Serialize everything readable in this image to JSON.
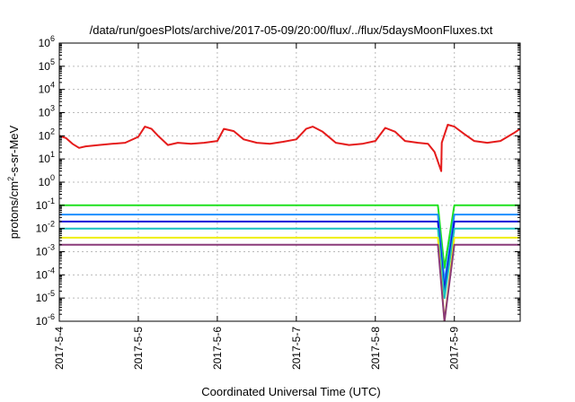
{
  "chart_data": {
    "type": "line",
    "title": "/data/run/goesPlots/archive/2017-05-09/20:00/flux/../flux/5daysMoonFluxes.txt",
    "xlabel": "Coordinated Universal Time (UTC)",
    "ylabel": {
      "prefix": "protons/cm",
      "superscript": "2",
      "suffix": "-s-sr-MeV"
    },
    "y_scale": "log",
    "ylim": [
      1e-06,
      1000000.0
    ],
    "xlim": [
      "2017-05-04T00:00",
      "2017-05-09T20:00"
    ],
    "grid": true,
    "legend": "none",
    "x_ticks": [
      {
        "label": "2017-5-4",
        "value": "2017-05-04T00:00"
      },
      {
        "label": "2017-5-5",
        "value": "2017-05-05T00:00"
      },
      {
        "label": "2017-5-6",
        "value": "2017-05-06T00:00"
      },
      {
        "label": "2017-5-7",
        "value": "2017-05-07T00:00"
      },
      {
        "label": "2017-5-8",
        "value": "2017-05-08T00:00"
      },
      {
        "label": "2017-5-9",
        "value": "2017-05-09T00:00"
      }
    ],
    "y_ticks": [
      {
        "base": "10",
        "exp": "-6",
        "value": 1e-06
      },
      {
        "base": "10",
        "exp": "-5",
        "value": 1e-05
      },
      {
        "base": "10",
        "exp": "-4",
        "value": 0.0001
      },
      {
        "base": "10",
        "exp": "-3",
        "value": 0.001
      },
      {
        "base": "10",
        "exp": "-2",
        "value": 0.01
      },
      {
        "base": "10",
        "exp": "-1",
        "value": 0.1
      },
      {
        "base": "10",
        "exp": "0",
        "value": 1
      },
      {
        "base": "10",
        "exp": "1",
        "value": 10
      },
      {
        "base": "10",
        "exp": "2",
        "value": 100
      },
      {
        "base": "10",
        "exp": "3",
        "value": 1000
      },
      {
        "base": "10",
        "exp": "4",
        "value": 10000
      },
      {
        "base": "10",
        "exp": "5",
        "value": 100000
      },
      {
        "base": "10",
        "exp": "6",
        "value": 1000000
      }
    ],
    "series": [
      {
        "color": "#e51b1b",
        "x": [
          "2017-05-04T00:00",
          "2017-05-04T02:00",
          "2017-05-04T04:00",
          "2017-05-04T06:00",
          "2017-05-04T08:00",
          "2017-05-04T12:00",
          "2017-05-04T16:00",
          "2017-05-04T20:00",
          "2017-05-05T00:00",
          "2017-05-05T02:00",
          "2017-05-05T04:00",
          "2017-05-05T06:00",
          "2017-05-05T09:00",
          "2017-05-05T12:00",
          "2017-05-05T16:00",
          "2017-05-05T20:00",
          "2017-05-06T00:00",
          "2017-05-06T02:00",
          "2017-05-06T05:00",
          "2017-05-06T08:00",
          "2017-05-06T12:00",
          "2017-05-06T16:00",
          "2017-05-06T20:00",
          "2017-05-07T00:00",
          "2017-05-07T03:00",
          "2017-05-07T05:00",
          "2017-05-07T08:00",
          "2017-05-07T12:00",
          "2017-05-07T16:00",
          "2017-05-07T20:00",
          "2017-05-08T00:00",
          "2017-05-08T03:00",
          "2017-05-08T06:00",
          "2017-05-08T09:00",
          "2017-05-08T13:00",
          "2017-05-08T16:00",
          "2017-05-08T18:00",
          "2017-05-08T20:00",
          "2017-05-08T20:10",
          "2017-05-08T22:00",
          "2017-05-09T00:00",
          "2017-05-09T03:00",
          "2017-05-09T06:00",
          "2017-05-09T10:00",
          "2017-05-09T14:00",
          "2017-05-09T18:00",
          "2017-05-09T20:00"
        ],
        "y": [
          100,
          80,
          45,
          30,
          35,
          40,
          45,
          50,
          90,
          250,
          200,
          100,
          40,
          50,
          45,
          50,
          60,
          200,
          160,
          70,
          50,
          45,
          55,
          70,
          200,
          250,
          150,
          50,
          40,
          45,
          60,
          220,
          150,
          60,
          50,
          45,
          20,
          3,
          50,
          300,
          250,
          120,
          60,
          50,
          60,
          130,
          200
        ]
      },
      {
        "color": "#1fe01f",
        "x": [
          "2017-05-04T00:00",
          "2017-05-04T12:00",
          "2017-05-05T00:00",
          "2017-05-05T12:00",
          "2017-05-06T00:00",
          "2017-05-06T12:00",
          "2017-05-07T00:00",
          "2017-05-07T12:00",
          "2017-05-08T00:00",
          "2017-05-08T12:00",
          "2017-05-08T19:00",
          "2017-05-08T21:00",
          "2017-05-09T00:00",
          "2017-05-09T12:00",
          "2017-05-09T20:00"
        ],
        "y": [
          0.1,
          0.1,
          0.1,
          0.1,
          0.1,
          0.1,
          0.1,
          0.1,
          0.1,
          0.1,
          0.1,
          0.0002,
          0.1,
          0.1,
          0.1
        ]
      },
      {
        "color": "#1f8fff",
        "x": [
          "2017-05-04T00:00",
          "2017-05-04T12:00",
          "2017-05-05T00:00",
          "2017-05-05T12:00",
          "2017-05-06T00:00",
          "2017-05-06T12:00",
          "2017-05-07T00:00",
          "2017-05-07T12:00",
          "2017-05-08T00:00",
          "2017-05-08T12:00",
          "2017-05-08T19:00",
          "2017-05-08T21:00",
          "2017-05-09T00:00",
          "2017-05-09T12:00",
          "2017-05-09T20:00"
        ],
        "y": [
          0.04,
          0.04,
          0.04,
          0.04,
          0.04,
          0.04,
          0.04,
          0.04,
          0.04,
          0.04,
          0.04,
          5e-05,
          0.04,
          0.04,
          0.04
        ]
      },
      {
        "color": "#1010d8",
        "x": [
          "2017-05-04T00:00",
          "2017-05-04T12:00",
          "2017-05-05T00:00",
          "2017-05-05T12:00",
          "2017-05-06T00:00",
          "2017-05-06T12:00",
          "2017-05-07T00:00",
          "2017-05-07T12:00",
          "2017-05-08T00:00",
          "2017-05-08T12:00",
          "2017-05-08T19:00",
          "2017-05-08T21:00",
          "2017-05-09T00:00",
          "2017-05-09T12:00",
          "2017-05-09T20:00"
        ],
        "y": [
          0.02,
          0.02,
          0.02,
          0.02,
          0.02,
          0.02,
          0.02,
          0.02,
          0.02,
          0.02,
          0.02,
          2e-05,
          0.02,
          0.02,
          0.02
        ]
      },
      {
        "color": "#18c0c0",
        "x": [
          "2017-05-04T00:00",
          "2017-05-04T12:00",
          "2017-05-05T00:00",
          "2017-05-05T12:00",
          "2017-05-06T00:00",
          "2017-05-06T12:00",
          "2017-05-07T00:00",
          "2017-05-07T12:00",
          "2017-05-08T00:00",
          "2017-05-08T12:00",
          "2017-05-08T19:00",
          "2017-05-08T21:00",
          "2017-05-09T00:00",
          "2017-05-09T12:00",
          "2017-05-09T20:00"
        ],
        "y": [
          0.01,
          0.01,
          0.01,
          0.01,
          0.01,
          0.01,
          0.01,
          0.01,
          0.01,
          0.01,
          0.01,
          1e-05,
          0.01,
          0.01,
          0.01
        ]
      },
      {
        "color": "#eeee10",
        "x": [
          "2017-05-04T00:00",
          "2017-05-04T12:00",
          "2017-05-05T00:00",
          "2017-05-05T12:00",
          "2017-05-06T00:00",
          "2017-05-06T12:00",
          "2017-05-07T00:00",
          "2017-05-07T12:00",
          "2017-05-08T00:00",
          "2017-05-08T12:00",
          "2017-05-08T19:00",
          "2017-05-08T21:00",
          "2017-05-09T00:00",
          "2017-05-09T12:00",
          "2017-05-09T20:00"
        ],
        "y": [
          0.004,
          0.004,
          0.004,
          0.004,
          0.004,
          0.004,
          0.004,
          0.004,
          0.004,
          0.004,
          0.004,
          1e-06,
          0.004,
          0.004,
          0.004
        ]
      },
      {
        "color": "#8a3a78",
        "x": [
          "2017-05-04T00:00",
          "2017-05-04T12:00",
          "2017-05-05T00:00",
          "2017-05-05T12:00",
          "2017-05-06T00:00",
          "2017-05-06T12:00",
          "2017-05-07T00:00",
          "2017-05-07T12:00",
          "2017-05-08T00:00",
          "2017-05-08T12:00",
          "2017-05-08T19:00",
          "2017-05-08T21:00",
          "2017-05-09T00:00",
          "2017-05-09T12:00",
          "2017-05-09T20:00"
        ],
        "y": [
          0.002,
          0.002,
          0.002,
          0.002,
          0.002,
          0.002,
          0.002,
          0.002,
          0.002,
          0.002,
          0.002,
          1e-06,
          0.002,
          0.002,
          0.002
        ]
      }
    ]
  }
}
